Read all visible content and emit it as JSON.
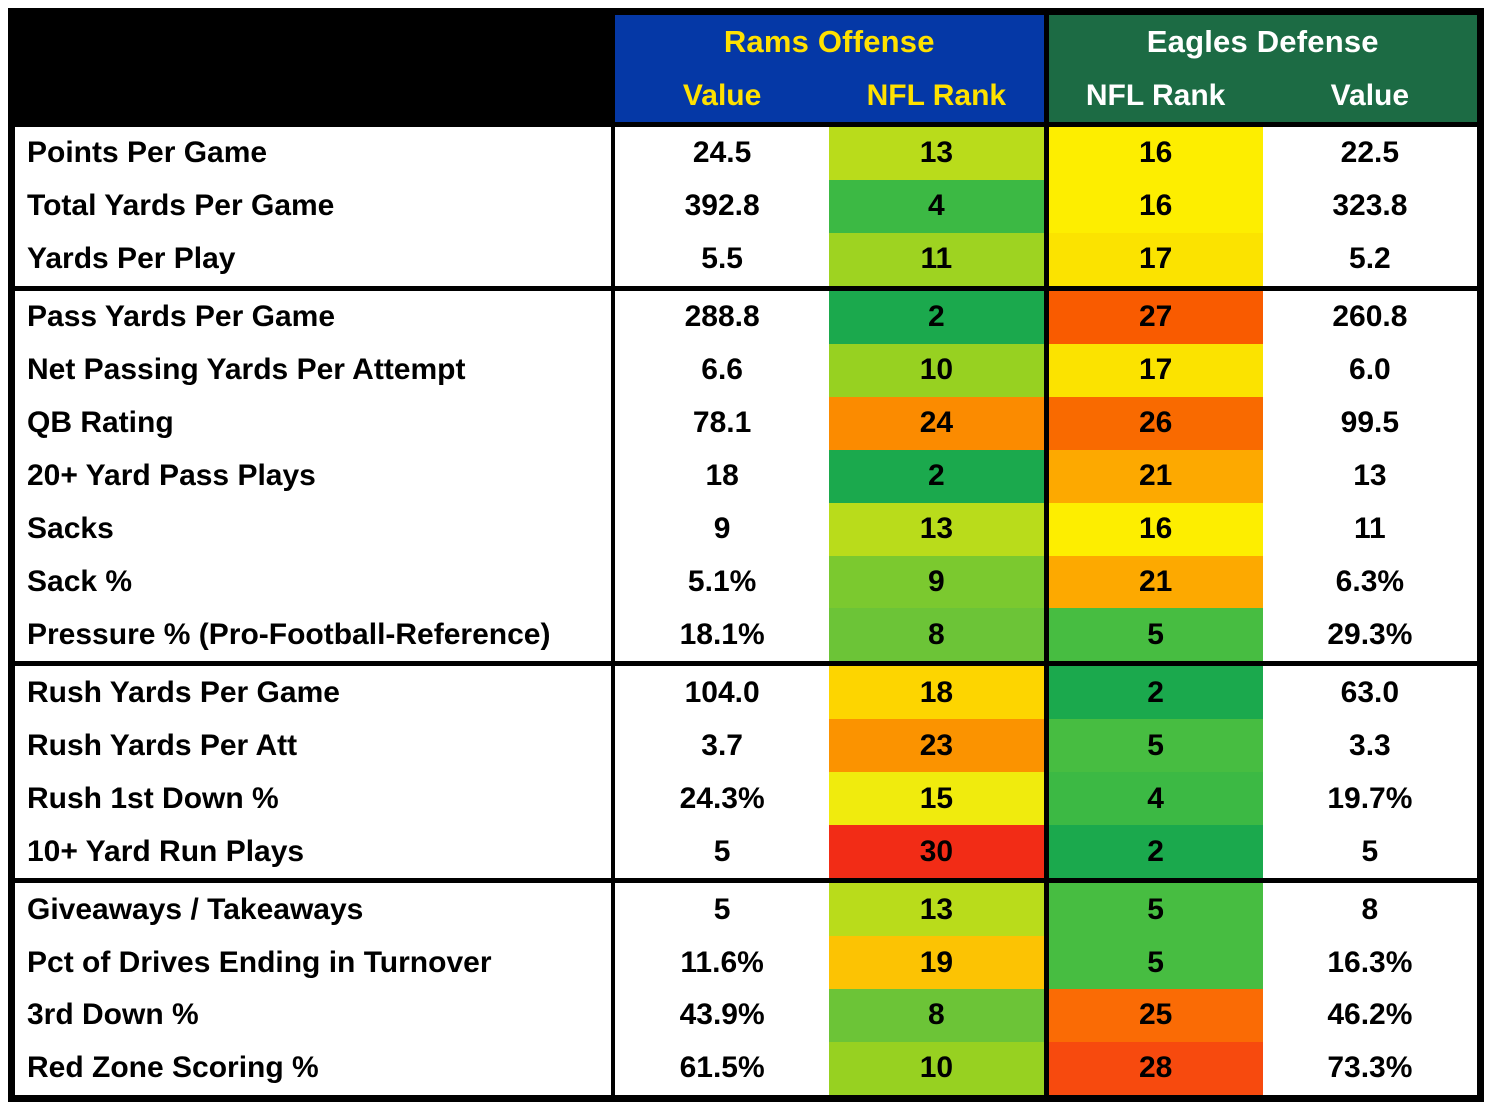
{
  "header": {
    "rams": {
      "title": "Rams Offense",
      "value_label": "Value",
      "rank_label": "NFL Rank",
      "bg": "#0538A6",
      "text_color": "#FFE100"
    },
    "eagles": {
      "title": "Eagles Defense",
      "rank_label": "NFL Rank",
      "value_label": "Value",
      "bg": "#1C6B44",
      "text_color": "#FFFFFF"
    }
  },
  "colors": {
    "border": "#000000",
    "row_bg": "#FFFFFF",
    "text": "#000000",
    "rank_scale_green": "#1BA94D",
    "rank_scale_yellow": "#FDEE00",
    "rank_scale_red": "#F22C16"
  },
  "chart_data": {
    "type": "table",
    "columns": [
      "",
      "Rams Offense Value",
      "Rams Offense NFL Rank",
      "Eagles Defense NFL Rank",
      "Eagles Defense Value"
    ],
    "rows": [
      {
        "label": "Points Per Game",
        "rams_value": "24.5",
        "rams_rank": 13,
        "rams_rank_color": "#B9DC1B",
        "eagles_rank": 16,
        "eagles_rank_color": "#FDEE00",
        "eagles_value": "22.5",
        "group_start": false
      },
      {
        "label": "Total Yards Per Game",
        "rams_value": "392.8",
        "rams_rank": 4,
        "rams_rank_color": "#3CB944",
        "eagles_rank": 16,
        "eagles_rank_color": "#FDEE00",
        "eagles_value": "323.8",
        "group_start": false
      },
      {
        "label": "Yards Per Play",
        "rams_value": "5.5",
        "rams_rank": 11,
        "rams_rank_color": "#9ED321",
        "eagles_rank": 17,
        "eagles_rank_color": "#FBE300",
        "eagles_value": "5.2",
        "group_start": false
      },
      {
        "label": "Pass Yards Per Game",
        "rams_value": "288.8",
        "rams_rank": 2,
        "rams_rank_color": "#1BA94D",
        "eagles_rank": 27,
        "eagles_rank_color": "#F95B00",
        "eagles_value": "260.8",
        "group_start": true
      },
      {
        "label": "Net Passing Yards Per Attempt",
        "rams_value": "6.6",
        "rams_rank": 10,
        "rams_rank_color": "#97D121",
        "eagles_rank": 17,
        "eagles_rank_color": "#FBE300",
        "eagles_value": "6.0",
        "group_start": false
      },
      {
        "label": "QB Rating",
        "rams_value": "78.1",
        "rams_rank": 24,
        "rams_rank_color": "#FB8B00",
        "eagles_rank": 26,
        "eagles_rank_color": "#F96A00",
        "eagles_value": "99.5",
        "group_start": false
      },
      {
        "label": "20+ Yard Pass Plays",
        "rams_value": "18",
        "rams_rank": 2,
        "rams_rank_color": "#1BA94D",
        "eagles_rank": 21,
        "eagles_rank_color": "#FDA900",
        "eagles_value": "13",
        "group_start": false
      },
      {
        "label": "Sacks",
        "rams_value": "9",
        "rams_rank": 13,
        "rams_rank_color": "#B9DC1B",
        "eagles_rank": 16,
        "eagles_rank_color": "#FDEE00",
        "eagles_value": "11",
        "group_start": false
      },
      {
        "label": "Sack %",
        "rams_value": "5.1%",
        "rams_rank": 9,
        "rams_rank_color": "#7BC92F",
        "eagles_rank": 21,
        "eagles_rank_color": "#FDA900",
        "eagles_value": "6.3%",
        "group_start": false
      },
      {
        "label": "Pressure % (Pro-Football-Reference)",
        "rams_value": "18.1%",
        "rams_rank": 8,
        "rams_rank_color": "#6CC437",
        "eagles_rank": 5,
        "eagles_rank_color": "#47BD41",
        "eagles_value": "29.3%",
        "group_start": false
      },
      {
        "label": "Rush Yards Per Game",
        "rams_value": "104.0",
        "rams_rank": 18,
        "rams_rank_color": "#FDD500",
        "eagles_rank": 2,
        "eagles_rank_color": "#1BA94D",
        "eagles_value": "63.0",
        "group_start": true
      },
      {
        "label": "Rush Yards Per Att",
        "rams_value": "3.7",
        "rams_rank": 23,
        "rams_rank_color": "#FB9300",
        "eagles_rank": 5,
        "eagles_rank_color": "#47BD41",
        "eagles_value": "3.3",
        "group_start": false
      },
      {
        "label": "Rush 1st Down %",
        "rams_value": "24.3%",
        "rams_rank": 15,
        "rams_rank_color": "#F0EB0D",
        "eagles_rank": 4,
        "eagles_rank_color": "#3CB944",
        "eagles_value": "19.7%",
        "group_start": false
      },
      {
        "label": "10+ Yard Run Plays",
        "rams_value": "5",
        "rams_rank": 30,
        "rams_rank_color": "#F22C16",
        "eagles_rank": 2,
        "eagles_rank_color": "#1BA94D",
        "eagles_value": "5",
        "group_start": false
      },
      {
        "label": "Giveaways / Takeaways",
        "rams_value": "5",
        "rams_rank": 13,
        "rams_rank_color": "#B9DC1B",
        "eagles_rank": 5,
        "eagles_rank_color": "#47BD41",
        "eagles_value": "8",
        "group_start": true
      },
      {
        "label": "Pct of Drives Ending in Turnover",
        "rams_value": "11.6%",
        "rams_rank": 19,
        "rams_rank_color": "#FCC303",
        "eagles_rank": 5,
        "eagles_rank_color": "#47BD41",
        "eagles_value": "16.3%",
        "group_start": false
      },
      {
        "label": "3rd Down %",
        "rams_value": "43.9%",
        "rams_rank": 8,
        "rams_rank_color": "#6CC437",
        "eagles_rank": 25,
        "eagles_rank_color": "#FA6B05",
        "eagles_value": "46.2%",
        "group_start": false
      },
      {
        "label": "Red Zone Scoring %",
        "rams_value": "61.5%",
        "rams_rank": 10,
        "rams_rank_color": "#97D121",
        "eagles_rank": 28,
        "eagles_rank_color": "#F74A0E",
        "eagles_value": "73.3%",
        "group_start": false
      }
    ]
  }
}
